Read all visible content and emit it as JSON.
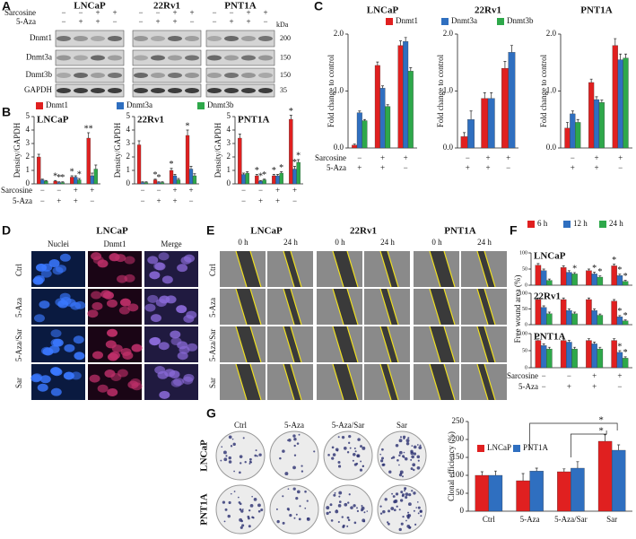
{
  "panels": [
    "A",
    "B",
    "C",
    "D",
    "E",
    "F",
    "G"
  ],
  "blot": {
    "cell_lines": [
      "LNCaP",
      "22Rv1",
      "PNT1A"
    ],
    "treatments": [
      {
        "name": "Sarcosine",
        "signs": [
          "−",
          "−",
          "+",
          "+"
        ]
      },
      {
        "name": "5-Aza",
        "signs": [
          "−",
          "+",
          "+",
          "−"
        ]
      }
    ],
    "kda_label": "kDa",
    "rows": [
      {
        "name": "Dnmt1",
        "kda": "200"
      },
      {
        "name": "Dnmt3a",
        "kda": "150"
      },
      {
        "name": "Dnmt3b",
        "kda": "150"
      },
      {
        "name": "GAPDH",
        "kda": "35"
      }
    ]
  },
  "microscopy": {
    "title": "LNCaP",
    "columns": [
      "Nuclei",
      "Dnmt1",
      "Merge"
    ],
    "rows": [
      "Ctrl",
      "5-Aza",
      "5-Aza/Sar",
      "Sar"
    ]
  },
  "wound": {
    "cell_lines": [
      "LNCaP",
      "22Rv1",
      "PNT1A"
    ],
    "times": [
      "0 h",
      "24 h"
    ],
    "rows": [
      "Ctrl",
      "5-Aza",
      "5-Aza/Sar",
      "Sar"
    ]
  },
  "colony": {
    "columns": [
      "Ctrl",
      "5-Aza",
      "5-Aza/Sar",
      "Sar"
    ],
    "rows": [
      "LNCaP",
      "PNT1A"
    ]
  },
  "chart_data": [
    {
      "type": "bar",
      "title": "LNCaP",
      "ylabel": "Density/GAPDH",
      "categories": [
        null,
        null,
        null,
        null
      ],
      "ylim": [
        0,
        5
      ],
      "yticks": [
        0,
        1,
        2,
        3,
        4,
        5
      ],
      "legend": true,
      "treatments": [
        {
          "name": "Sarcosine",
          "signs": [
            "−",
            "−",
            "+",
            "+"
          ]
        },
        {
          "name": "5-Aza",
          "signs": [
            "−",
            "+",
            "+",
            "−"
          ]
        }
      ],
      "series": [
        {
          "name": "Dnmt1",
          "color": "#e02020",
          "values": [
            2.0,
            0.2,
            0.5,
            3.4
          ],
          "errors": [
            0.2,
            0.05,
            0.1,
            0.4
          ],
          "significance": [
            null,
            "*",
            "*",
            "**"
          ]
        },
        {
          "name": "Dnmt3a",
          "color": "#2f6fc0",
          "values": [
            0.3,
            0.1,
            0.5,
            0.6
          ],
          "errors": [
            0.05,
            0.05,
            0.1,
            0.2
          ],
          "significance": [
            null,
            "*",
            null,
            null
          ]
        },
        {
          "name": "Dnmt3b",
          "color": "#2ea84a",
          "values": [
            0.2,
            0.1,
            0.3,
            1.1
          ],
          "errors": [
            0.05,
            0.05,
            0.1,
            0.3
          ],
          "significance": [
            null,
            "*",
            "*",
            null
          ]
        }
      ]
    },
    {
      "type": "bar",
      "title": "22Rv1",
      "ylabel": "Density/GAPDH",
      "categories": [
        null,
        null,
        null,
        null
      ],
      "ylim": [
        0,
        5
      ],
      "yticks": [
        0,
        1,
        2,
        3,
        4,
        5
      ],
      "treatment_signs": [
        [
          "−",
          "−",
          "+",
          "+"
        ],
        [
          "−",
          "+",
          "+",
          "−"
        ]
      ],
      "series": [
        {
          "name": "Dnmt1",
          "color": "#e02020",
          "values": [
            2.9,
            0.3,
            1.0,
            3.6
          ],
          "errors": [
            0.3,
            0.05,
            0.15,
            0.4
          ],
          "significance": [
            null,
            "*",
            "*",
            "*"
          ]
        },
        {
          "name": "Dnmt3a",
          "color": "#2f6fc0",
          "values": [
            0.1,
            0.1,
            0.6,
            1.1
          ],
          "errors": [
            0.05,
            0.05,
            0.1,
            0.2
          ],
          "significance": [
            null,
            "*",
            null,
            null
          ]
        },
        {
          "name": "Dnmt3b",
          "color": "#2ea84a",
          "values": [
            0.1,
            0.1,
            0.3,
            0.6
          ],
          "errors": [
            0.05,
            0.05,
            0.1,
            0.15
          ],
          "significance": [
            null,
            null,
            null,
            null
          ]
        }
      ]
    },
    {
      "type": "bar",
      "title": "PNT1A",
      "ylabel": "Density/GAPDH",
      "categories": [
        null,
        null,
        null,
        null
      ],
      "ylim": [
        0,
        5
      ],
      "yticks": [
        0,
        1,
        2,
        3,
        4,
        5
      ],
      "treatment_signs": [
        [
          "−",
          "−",
          "+",
          "+"
        ],
        [
          "−",
          "+",
          "+",
          "−"
        ]
      ],
      "series": [
        {
          "name": "Dnmt1",
          "color": "#e02020",
          "values": [
            3.4,
            0.6,
            0.6,
            4.8
          ],
          "errors": [
            0.3,
            0.1,
            0.1,
            0.3
          ],
          "significance": [
            null,
            "*",
            "*",
            "*"
          ]
        },
        {
          "name": "Dnmt3a",
          "color": "#2f6fc0",
          "values": [
            0.7,
            0.2,
            0.6,
            1.1
          ],
          "errors": [
            0.1,
            0.05,
            0.1,
            0.2
          ],
          "significance": [
            null,
            "*",
            null,
            "*"
          ]
        },
        {
          "name": "Dnmt3b",
          "color": "#2ea84a",
          "values": [
            0.8,
            0.3,
            0.8,
            1.6
          ],
          "errors": [
            0.1,
            0.05,
            0.1,
            0.2
          ],
          "significance": [
            null,
            "*",
            "*",
            "*"
          ]
        }
      ]
    },
    {
      "type": "bar",
      "title": "LNCaP",
      "ylabel": "Fold change to control",
      "categories": [
        null,
        null,
        null
      ],
      "ylim": [
        0,
        2
      ],
      "yticks": [
        {
          "value": 0,
          "label": "0.0"
        },
        {
          "value": 1,
          "label": "1.0"
        },
        {
          "value": 2,
          "label": "2.0"
        }
      ],
      "legend": true,
      "treatments": [
        {
          "name": "Sarcosine",
          "signs": [
            "−",
            "+",
            "+"
          ]
        },
        {
          "name": "5-Aza",
          "signs": [
            "+",
            "+",
            "−"
          ]
        }
      ],
      "series": [
        {
          "name": "Dnmt1",
          "color": "#e02020",
          "values": [
            0.05,
            1.45,
            1.8
          ],
          "errors": [
            0.02,
            0.06,
            0.08
          ]
        },
        {
          "name": "Dnmt3a",
          "color": "#2f6fc0",
          "values": [
            0.62,
            1.05,
            1.87
          ],
          "errors": [
            0.03,
            0.04,
            0.07
          ]
        },
        {
          "name": "Dnmt3b",
          "color": "#2ea84a",
          "values": [
            0.48,
            0.73,
            1.35
          ],
          "errors": [
            0.02,
            0.03,
            0.06
          ]
        }
      ]
    },
    {
      "type": "bar",
      "title": "22Rv1",
      "ylabel": "Fold change to control",
      "categories": [
        null,
        null,
        null
      ],
      "ylim": [
        0,
        2
      ],
      "yticks": [
        {
          "value": 0,
          "label": "0.0"
        },
        {
          "value": 1,
          "label": "1.0"
        },
        {
          "value": 2,
          "label": "2.0"
        }
      ],
      "treatment_signs": [
        [
          "−",
          "+",
          "+"
        ],
        [
          "+",
          "+",
          "−"
        ]
      ],
      "series": [
        {
          "name": "Dnmt1",
          "color": "#e02020",
          "values": [
            0.2,
            0.87,
            1.4
          ],
          "errors": [
            0.07,
            0.1,
            0.12
          ]
        },
        {
          "name": "Dnmt3a",
          "color": "#2f6fc0",
          "values": [
            0.5,
            0.87,
            1.68
          ],
          "errors": [
            0.15,
            0.1,
            0.12
          ]
        }
      ]
    },
    {
      "type": "bar",
      "title": "PNT1A",
      "ylabel": "Fold change to control",
      "categories": [
        null,
        null,
        null
      ],
      "ylim": [
        0,
        2
      ],
      "yticks": [
        {
          "value": 0,
          "label": "0.0"
        },
        {
          "value": 1,
          "label": "1.0"
        },
        {
          "value": 2,
          "label": "2.0"
        }
      ],
      "treatment_signs": [
        [
          "−",
          "+",
          "+"
        ],
        [
          "+",
          "+",
          "−"
        ]
      ],
      "series": [
        {
          "name": "Dnmt1",
          "color": "#e02020",
          "values": [
            0.35,
            1.15,
            1.8
          ],
          "errors": [
            0.1,
            0.06,
            0.12
          ]
        },
        {
          "name": "Dnmt3a",
          "color": "#2f6fc0",
          "values": [
            0.6,
            0.85,
            1.55
          ],
          "errors": [
            0.05,
            0.05,
            0.1
          ]
        },
        {
          "name": "Dnmt3b",
          "color": "#2ea84a",
          "values": [
            0.45,
            0.8,
            1.58
          ],
          "errors": [
            0.05,
            0.04,
            0.07
          ]
        }
      ]
    },
    {
      "type": "bar",
      "title": "LNCaP",
      "categories": [
        null,
        null,
        null,
        null
      ],
      "ylim": [
        0,
        100
      ],
      "yticks": [
        0,
        50,
        100
      ],
      "legend": true,
      "series": [
        {
          "name": "6 h",
          "color": "#e02020",
          "values": [
            62,
            55,
            45,
            60
          ],
          "errors": [
            5,
            5,
            5,
            5
          ],
          "significance": [
            null,
            null,
            null,
            "*"
          ]
        },
        {
          "name": "12 h",
          "color": "#2f6fc0",
          "values": [
            45,
            40,
            35,
            30
          ],
          "errors": [
            5,
            5,
            5,
            4
          ],
          "significance": [
            null,
            null,
            "*",
            "*"
          ]
        },
        {
          "name": "24 h",
          "color": "#2ea84a",
          "values": [
            15,
            35,
            25,
            12
          ],
          "errors": [
            4,
            4,
            4,
            3
          ],
          "significance": [
            null,
            "*",
            "*",
            "*"
          ]
        }
      ]
    },
    {
      "type": "bar",
      "title": "22Rv1",
      "ylabel": "Free wound area (%)",
      "categories": [
        null,
        null,
        null,
        null
      ],
      "ylim": [
        0,
        100
      ],
      "yticks": [
        0,
        50,
        100
      ],
      "series": [
        {
          "name": "6 h",
          "color": "#e02020",
          "values": [
            80,
            80,
            80,
            75
          ],
          "errors": [
            5,
            5,
            5,
            5
          ]
        },
        {
          "name": "12 h",
          "color": "#2f6fc0",
          "values": [
            55,
            45,
            45,
            25
          ],
          "errors": [
            5,
            5,
            5,
            4
          ],
          "significance": [
            null,
            null,
            null,
            "*"
          ]
        },
        {
          "name": "24 h",
          "color": "#2ea84a",
          "values": [
            35,
            35,
            30,
            12
          ],
          "errors": [
            5,
            5,
            4,
            3
          ],
          "significance": [
            null,
            null,
            null,
            "*"
          ]
        }
      ]
    },
    {
      "type": "bar",
      "title": "PNT1A",
      "categories": [
        null,
        null,
        null,
        null
      ],
      "ylim": [
        0,
        100
      ],
      "yticks": [
        0,
        50,
        100
      ],
      "treatments": [
        {
          "name": "Sarcosine",
          "signs": [
            "−",
            "−",
            "+",
            "+"
          ]
        },
        {
          "name": "5-Aza",
          "signs": [
            "−",
            "+",
            "+",
            "−"
          ]
        }
      ],
      "series": [
        {
          "name": "6 h",
          "color": "#e02020",
          "values": [
            80,
            80,
            80,
            80
          ],
          "errors": [
            5,
            5,
            5,
            5
          ]
        },
        {
          "name": "12 h",
          "color": "#2f6fc0",
          "values": [
            65,
            75,
            70,
            45
          ],
          "errors": [
            5,
            5,
            5,
            5
          ],
          "significance": [
            null,
            null,
            null,
            "*"
          ]
        },
        {
          "name": "24 h",
          "color": "#2ea84a",
          "values": [
            55,
            55,
            55,
            28
          ],
          "errors": [
            5,
            5,
            5,
            4
          ],
          "significance": [
            null,
            null,
            null,
            "*"
          ]
        }
      ]
    },
    {
      "type": "bar",
      "ylabel": "Clonal efficiency (%)",
      "categories": [
        "Ctrl",
        "5-Aza",
        "5-Aza/Sar",
        "Sar"
      ],
      "ylim": [
        0,
        250
      ],
      "yticks": [
        0,
        50,
        100,
        150,
        200,
        250
      ],
      "legend": true,
      "annotations": [
        "*",
        "*"
      ],
      "series": [
        {
          "name": "LNCaP",
          "color": "#e02020",
          "values": [
            100,
            85,
            110,
            195
          ],
          "errors": [
            10,
            20,
            8,
            18
          ]
        },
        {
          "name": "PNT1A",
          "color": "#2f6fc0",
          "values": [
            100,
            112,
            120,
            170
          ],
          "errors": [
            12,
            8,
            18,
            15
          ]
        }
      ]
    }
  ]
}
